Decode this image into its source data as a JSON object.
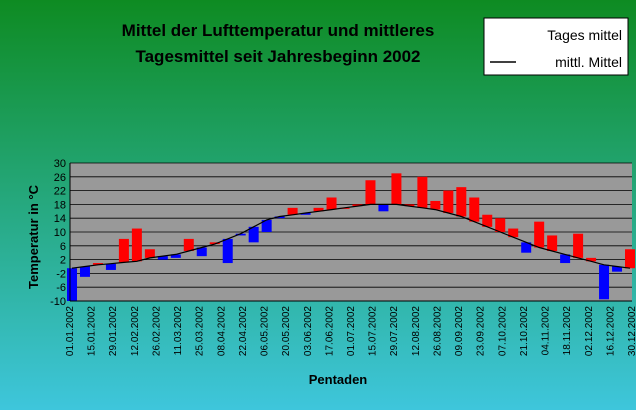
{
  "colors": {
    "bg_top": "#0e8b22",
    "bg_bottom": "#3ec6dc",
    "plot_bg": "#999999",
    "above_mean": "#ff0000",
    "below_mean": "#0000ff",
    "mean_line": "#000000",
    "grid": "#000000"
  },
  "chart_data": {
    "type": "bar",
    "title_lines": [
      "Mittel der Lufttemperatur und mittleres",
      "Tagesmittel seit Jahresbeginn 2002"
    ],
    "xlabel": "Pentaden",
    "ylabel": "Temperatur in °C",
    "ylim": [
      -10,
      30
    ],
    "yticks": [
      -10,
      -6,
      -2,
      2,
      6,
      10,
      14,
      18,
      22,
      26,
      30
    ],
    "grid": true,
    "legend": {
      "placement": "top-right",
      "entries": [
        "Tages mittel",
        "mittl. Mittel"
      ]
    },
    "x_tick_labels": [
      "01.01.2002",
      "15.01.2002",
      "29.01.2002",
      "12.02.2002",
      "26.02.2002",
      "11.03.2002",
      "25.03.2002",
      "08.04.2002",
      "22.04.2002",
      "06.05.2002",
      "20.05.2002",
      "03.06.2002",
      "17.06.2002",
      "01.07.2002",
      "15.07.2002",
      "29.07.2002",
      "12.08.2002",
      "26.08.2002",
      "09.09.2002",
      "23.09.2002",
      "07.10.2002",
      "21.10.2002",
      "04.11.2002",
      "18.11.2002",
      "02.12.2002",
      "16.12.2002",
      "30.12.2002"
    ],
    "series": [
      {
        "name": "mittl. Mittel",
        "values": [
          -0.5,
          0.0,
          0.5,
          0.8,
          1.2,
          1.5,
          2.5,
          3.0,
          3.5,
          4.5,
          5.5,
          6.5,
          8.0,
          9.5,
          11.5,
          13.5,
          14.5,
          15.0,
          15.5,
          16.0,
          16.5,
          17.0,
          17.5,
          18.0,
          18.0,
          18.0,
          17.5,
          17.0,
          16.5,
          15.5,
          14.5,
          13.0,
          11.5,
          10.0,
          8.5,
          7.0,
          5.5,
          4.5,
          3.5,
          2.5,
          1.5,
          0.5,
          0.0,
          -0.5
        ]
      },
      {
        "name": "Tages mittel",
        "values": [
          -10.0,
          -3.0,
          1.0,
          -1.0,
          8.0,
          11.0,
          5.0,
          2.0,
          2.5,
          8.0,
          3.0,
          7.0,
          1.0,
          9.0,
          7.0,
          10.0,
          14.0,
          17.0,
          15.0,
          17.0,
          20.0,
          17.0,
          18.0,
          25.0,
          16.0,
          27.0,
          18.0,
          26.0,
          19.0,
          22.0,
          23.0,
          20.0,
          15.0,
          14.0,
          11.0,
          4.0,
          13.0,
          9.0,
          1.0,
          9.5,
          2.5,
          -9.5,
          -1.5,
          5.0
        ]
      }
    ]
  }
}
